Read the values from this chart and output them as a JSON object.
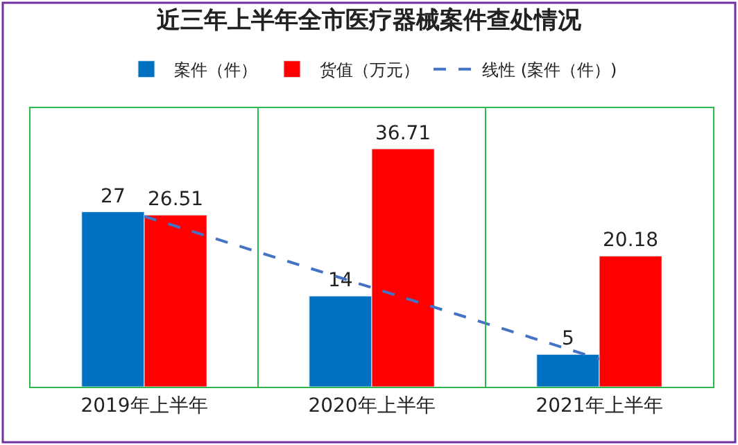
{
  "chart_data": {
    "type": "bar",
    "title": "近三年上半年全市医疗器械案件查处情况",
    "categories": [
      "2019年上半年",
      "2020年上半年",
      "2021年上半年"
    ],
    "series": [
      {
        "name": "案件（件）",
        "color": "#0070c0",
        "values": [
          27,
          14,
          5
        ],
        "value_labels": [
          "27",
          "14",
          "5"
        ]
      },
      {
        "name": "货值（万元）",
        "color": "#ff0000",
        "values": [
          26.51,
          36.71,
          20.18
        ],
        "value_labels": [
          "26.51",
          "36.71",
          "20.18"
        ]
      },
      {
        "name": "线性 (案件（件）)",
        "type": "line",
        "line_style": "dashed",
        "color": "#4472c4",
        "values": [
          26.3,
          15.3,
          4.3
        ]
      }
    ],
    "ylim": [
      0,
      43
    ],
    "grid": "x",
    "legend": "top",
    "tick_labels": "x"
  }
}
